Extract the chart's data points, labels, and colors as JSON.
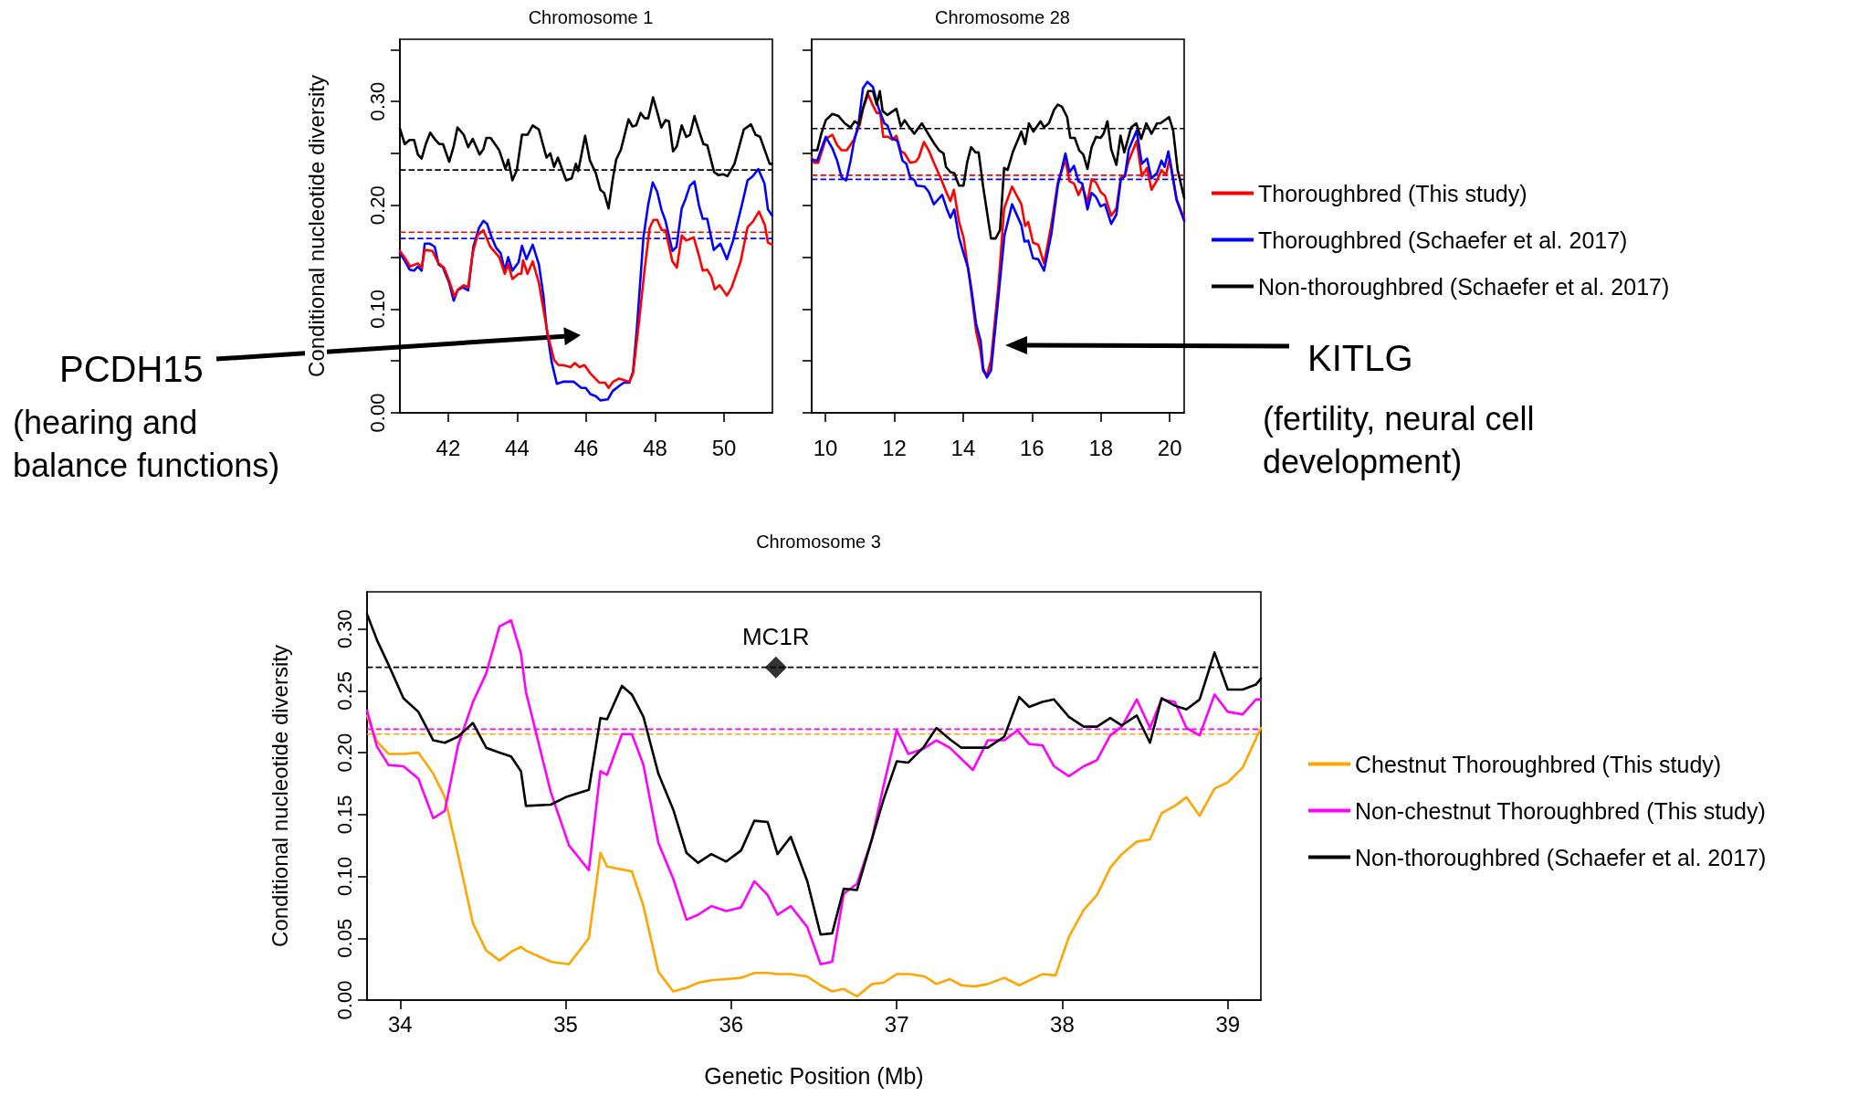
{
  "chart_data": [
    {
      "type": "line",
      "title": "Chromosome 1",
      "ylabel": "Conditional nucleotide diversity",
      "annotations": [
        "PCDH15",
        "(hearing and balance functions)"
      ],
      "xlim": [
        40.6,
        51.4
      ],
      "ylim": [
        0,
        0.36
      ],
      "xticks": [
        42,
        44,
        46,
        48,
        50
      ],
      "yticks": [
        {
          "value": 0,
          "label": "0.00"
        },
        {
          "value": 0.05,
          "label": null
        },
        {
          "value": 0.1,
          "label": "0.10"
        },
        {
          "value": 0.15,
          "label": null
        },
        {
          "value": 0.2,
          "label": "0.20"
        },
        {
          "value": 0.25,
          "label": null
        },
        {
          "value": 0.3,
          "label": "0.30"
        },
        {
          "value": 0.35,
          "label": null
        }
      ],
      "grid": false,
      "line_style": "solid",
      "ref_lines": [
        {
          "axis": "y",
          "value": 0.234,
          "color": "#000000",
          "line_style": "dashed"
        },
        {
          "axis": "y",
          "value": 0.174,
          "color": "#ff0000",
          "line_style": "dashed"
        },
        {
          "axis": "y",
          "value": 0.168,
          "color": "#0000ff",
          "line_style": "dashed"
        }
      ],
      "series": [
        {
          "color": "#000000",
          "x": [
            40.6,
            40.74,
            40.88,
            41.01,
            41.12,
            41.23,
            41.35,
            41.48,
            41.63,
            41.74,
            41.85,
            42.03,
            42.16,
            42.27,
            42.45,
            42.58,
            42.71,
            42.91,
            43.02,
            43.11,
            43.23,
            43.48,
            43.66,
            43.74,
            43.86,
            43.99,
            44.14,
            44.3,
            44.45,
            44.63,
            44.85,
            44.96,
            45.07,
            45.18,
            45.42,
            45.58,
            45.7,
            45.77,
            45.97,
            46.11,
            46.28,
            46.41,
            46.52,
            46.65,
            46.77,
            46.87,
            47.01,
            47.23,
            47.34,
            47.45,
            47.58,
            47.69,
            47.8,
            47.94,
            48.06,
            48.18,
            48.3,
            48.4,
            48.52,
            48.63,
            48.77,
            48.9,
            49.01,
            49.14,
            49.27,
            49.4,
            49.51,
            49.71,
            49.84,
            49.97,
            50.1,
            50.3,
            50.57,
            50.78,
            50.91,
            51.04,
            51.32,
            51.39
          ],
          "values": [
            0.274,
            0.259,
            0.263,
            0.263,
            0.249,
            0.245,
            0.259,
            0.27,
            0.263,
            0.259,
            0.259,
            0.242,
            0.257,
            0.275,
            0.268,
            0.256,
            0.264,
            0.249,
            0.254,
            0.265,
            0.265,
            0.253,
            0.235,
            0.244,
            0.224,
            0.234,
            0.268,
            0.268,
            0.277,
            0.273,
            0.246,
            0.25,
            0.237,
            0.246,
            0.224,
            0.226,
            0.24,
            0.233,
            0.267,
            0.243,
            0.231,
            0.215,
            0.212,
            0.197,
            0.225,
            0.244,
            0.254,
            0.283,
            0.276,
            0.277,
            0.289,
            0.284,
            0.284,
            0.304,
            0.29,
            0.275,
            0.282,
            0.281,
            0.252,
            0.257,
            0.277,
            0.266,
            0.268,
            0.286,
            0.272,
            0.259,
            0.258,
            0.232,
            0.229,
            0.23,
            0.228,
            0.24,
            0.273,
            0.278,
            0.268,
            0.266,
            0.24,
            0.24
          ]
        },
        {
          "color": "#0000ff",
          "x": [
            40.6,
            40.75,
            40.88,
            41.01,
            41.12,
            41.23,
            41.32,
            41.47,
            41.61,
            41.72,
            41.85,
            42.03,
            42.16,
            42.27,
            42.42,
            42.58,
            42.73,
            42.89,
            43.02,
            43.13,
            43.26,
            43.39,
            43.52,
            43.64,
            43.74,
            43.86,
            44.04,
            44.14,
            44.27,
            44.45,
            44.63,
            44.76,
            44.85,
            45.0,
            45.15,
            45.33,
            45.64,
            45.86,
            45.99,
            46.12,
            46.28,
            46.41,
            46.63,
            46.77,
            46.96,
            47.09,
            47.25,
            47.36,
            47.47,
            47.66,
            47.8,
            47.93,
            48.06,
            48.18,
            48.3,
            48.5,
            48.62,
            48.77,
            48.88,
            49.01,
            49.14,
            49.27,
            49.38,
            49.51,
            49.7,
            49.89,
            50.08,
            50.26,
            50.52,
            50.68,
            50.83,
            50.99,
            51.17,
            51.27,
            51.39
          ],
          "values": [
            0.154,
            0.146,
            0.138,
            0.137,
            0.141,
            0.137,
            0.163,
            0.163,
            0.16,
            0.143,
            0.14,
            0.125,
            0.108,
            0.118,
            0.121,
            0.118,
            0.16,
            0.178,
            0.185,
            0.182,
            0.169,
            0.159,
            0.154,
            0.137,
            0.15,
            0.137,
            0.145,
            0.161,
            0.148,
            0.162,
            0.143,
            0.113,
            0.082,
            0.049,
            0.028,
            0.03,
            0.03,
            0.024,
            0.024,
            0.018,
            0.016,
            0.012,
            0.013,
            0.021,
            0.026,
            0.029,
            0.029,
            0.04,
            0.081,
            0.169,
            0.201,
            0.222,
            0.213,
            0.196,
            0.185,
            0.156,
            0.16,
            0.197,
            0.206,
            0.219,
            0.223,
            0.2,
            0.187,
            0.187,
            0.157,
            0.163,
            0.148,
            0.166,
            0.201,
            0.224,
            0.228,
            0.235,
            0.221,
            0.196,
            0.19
          ]
        },
        {
          "color": "#ff0000",
          "x": [
            40.6,
            40.75,
            40.9,
            41.12,
            41.23,
            41.32,
            41.54,
            41.72,
            41.88,
            42.03,
            42.18,
            42.29,
            42.45,
            42.58,
            42.71,
            42.85,
            43.02,
            43.22,
            43.48,
            43.64,
            43.74,
            43.86,
            44.04,
            44.12,
            44.17,
            44.3,
            44.45,
            44.63,
            44.89,
            45.07,
            45.2,
            45.33,
            45.55,
            45.67,
            45.81,
            45.95,
            46.12,
            46.39,
            46.55,
            46.65,
            46.78,
            46.96,
            47.14,
            47.25,
            47.36,
            47.53,
            47.69,
            47.84,
            47.95,
            48.06,
            48.19,
            48.3,
            48.5,
            48.63,
            48.77,
            48.9,
            49.12,
            49.29,
            49.38,
            49.51,
            49.63,
            49.73,
            49.87,
            50.08,
            50.22,
            50.48,
            50.68,
            50.83,
            51.01,
            51.18,
            51.27,
            51.39
          ],
          "values": [
            0.156,
            0.149,
            0.141,
            0.144,
            0.14,
            0.157,
            0.156,
            0.144,
            0.14,
            0.127,
            0.112,
            0.119,
            0.123,
            0.121,
            0.154,
            0.171,
            0.176,
            0.16,
            0.15,
            0.134,
            0.143,
            0.129,
            0.134,
            0.134,
            0.147,
            0.134,
            0.146,
            0.125,
            0.075,
            0.051,
            0.046,
            0.046,
            0.044,
            0.048,
            0.044,
            0.046,
            0.038,
            0.029,
            0.029,
            0.024,
            0.03,
            0.033,
            0.031,
            0.03,
            0.038,
            0.087,
            0.137,
            0.178,
            0.186,
            0.186,
            0.176,
            0.176,
            0.146,
            0.14,
            0.171,
            0.166,
            0.169,
            0.149,
            0.137,
            0.138,
            0.131,
            0.119,
            0.123,
            0.113,
            0.121,
            0.146,
            0.179,
            0.184,
            0.194,
            0.181,
            0.164,
            0.162
          ]
        }
      ]
    },
    {
      "type": "line",
      "title": "Chromosome 28",
      "annotations": [
        "KITLG",
        "(fertility, neural cell development)"
      ],
      "xlim": [
        9.6,
        20.42
      ],
      "ylim": [
        0,
        0.36
      ],
      "xticks": [
        10,
        12,
        14,
        16,
        18,
        20
      ],
      "yticks": [
        0,
        0.05,
        0.1,
        0.15,
        0.2,
        0.25,
        0.3,
        0.35
      ],
      "tick_labels": "x",
      "grid": false,
      "legend": "right",
      "line_style": "solid",
      "ref_lines": [
        {
          "axis": "y",
          "value": 0.274,
          "color": "#000000",
          "line_style": "dashed"
        },
        {
          "axis": "y",
          "value": 0.229,
          "color": "#ff0000",
          "line_style": "dashed"
        },
        {
          "axis": "y",
          "value": 0.225,
          "color": "#0000ff",
          "line_style": "dashed"
        }
      ],
      "series": [
        {
          "name": "Thoroughbred (This study)",
          "color": "#ff0000",
          "x": [
            9.6,
            9.67,
            9.79,
            10.01,
            10.2,
            10.34,
            10.47,
            10.62,
            10.82,
            11.0,
            11.09,
            11.24,
            11.38,
            11.49,
            11.59,
            11.68,
            11.82,
            11.95,
            12.06,
            12.19,
            12.3,
            12.46,
            12.62,
            12.71,
            12.86,
            13.0,
            13.15,
            13.35,
            13.52,
            13.63,
            13.73,
            13.88,
            14.01,
            14.19,
            14.38,
            14.5,
            14.58,
            14.69,
            14.81,
            15.03,
            15.19,
            15.42,
            15.69,
            15.8,
            15.89,
            16.03,
            16.18,
            16.35,
            16.56,
            16.75,
            16.97,
            17.09,
            17.22,
            17.35,
            17.46,
            17.61,
            17.73,
            17.86,
            17.99,
            18.12,
            18.3,
            18.45,
            18.58,
            18.7,
            18.81,
            19.04,
            19.19,
            19.34,
            19.47,
            19.63,
            19.76,
            19.89,
            20.0,
            20.2,
            20.42
          ],
          "values": [
            0.246,
            0.241,
            0.241,
            0.264,
            0.268,
            0.258,
            0.253,
            0.253,
            0.263,
            0.278,
            0.293,
            0.307,
            0.296,
            0.289,
            0.289,
            0.266,
            0.266,
            0.263,
            0.267,
            0.252,
            0.25,
            0.241,
            0.242,
            0.246,
            0.261,
            0.253,
            0.241,
            0.226,
            0.212,
            0.204,
            0.215,
            0.184,
            0.169,
            0.128,
            0.078,
            0.06,
            0.04,
            0.036,
            0.051,
            0.125,
            0.197,
            0.218,
            0.201,
            0.18,
            0.184,
            0.164,
            0.162,
            0.144,
            0.181,
            0.222,
            0.244,
            0.223,
            0.221,
            0.21,
            0.218,
            0.203,
            0.225,
            0.222,
            0.213,
            0.209,
            0.19,
            0.197,
            0.227,
            0.229,
            0.243,
            0.262,
            0.228,
            0.236,
            0.215,
            0.224,
            0.234,
            0.229,
            0.245,
            0.206,
            0.187
          ]
        },
        {
          "name": "Thoroughbred (Schaefer et al. 2017)",
          "color": "#0000ff",
          "x": [
            9.6,
            9.76,
            10.01,
            10.2,
            10.34,
            10.47,
            10.6,
            10.73,
            10.82,
            10.96,
            11.09,
            11.22,
            11.38,
            11.53,
            11.71,
            11.8,
            11.93,
            12.09,
            12.24,
            12.35,
            12.46,
            12.59,
            12.65,
            12.88,
            13.0,
            13.15,
            13.39,
            13.52,
            13.63,
            13.74,
            13.88,
            14.01,
            14.14,
            14.25,
            14.38,
            14.51,
            14.58,
            14.69,
            14.81,
            15.01,
            15.2,
            15.42,
            15.69,
            15.78,
            15.89,
            16.03,
            16.18,
            16.35,
            16.56,
            16.75,
            16.97,
            17.09,
            17.22,
            17.35,
            17.46,
            17.61,
            17.73,
            17.86,
            17.99,
            18.12,
            18.3,
            18.45,
            18.58,
            18.7,
            18.81,
            19.04,
            19.19,
            19.34,
            19.47,
            19.63,
            19.76,
            19.85,
            19.96,
            20.2,
            20.42
          ],
          "values": [
            0.244,
            0.243,
            0.266,
            0.255,
            0.243,
            0.227,
            0.224,
            0.243,
            0.26,
            0.278,
            0.313,
            0.319,
            0.314,
            0.295,
            0.279,
            0.277,
            0.265,
            0.262,
            0.243,
            0.24,
            0.227,
            0.224,
            0.219,
            0.218,
            0.213,
            0.201,
            0.21,
            0.197,
            0.188,
            0.196,
            0.169,
            0.154,
            0.14,
            0.117,
            0.085,
            0.069,
            0.043,
            0.034,
            0.041,
            0.107,
            0.171,
            0.201,
            0.181,
            0.165,
            0.166,
            0.149,
            0.148,
            0.137,
            0.172,
            0.219,
            0.25,
            0.232,
            0.238,
            0.223,
            0.221,
            0.196,
            0.212,
            0.208,
            0.199,
            0.201,
            0.182,
            0.191,
            0.225,
            0.228,
            0.254,
            0.272,
            0.24,
            0.245,
            0.226,
            0.231,
            0.243,
            0.237,
            0.252,
            0.205,
            0.185
          ]
        },
        {
          "name": "Non-thoroughbred (Schaefer et al. 2017)",
          "color": "#000000",
          "x": [
            9.6,
            9.76,
            9.88,
            10.01,
            10.2,
            10.38,
            10.56,
            10.73,
            10.85,
            10.97,
            11.12,
            11.24,
            11.38,
            11.49,
            11.58,
            11.66,
            11.8,
            12.06,
            12.19,
            12.3,
            12.42,
            12.58,
            12.8,
            13.0,
            13.17,
            13.3,
            13.43,
            13.5,
            13.63,
            13.74,
            13.88,
            14.01,
            14.12,
            14.23,
            14.36,
            14.45,
            14.58,
            14.81,
            14.94,
            15.07,
            15.19,
            15.29,
            15.45,
            15.69,
            15.8,
            15.91,
            16.04,
            16.25,
            16.35,
            16.49,
            16.64,
            16.75,
            16.87,
            17.02,
            17.11,
            17.24,
            17.37,
            17.49,
            17.61,
            17.73,
            17.86,
            17.99,
            18.08,
            18.19,
            18.3,
            18.45,
            18.57,
            18.68,
            18.88,
            19.03,
            19.17,
            19.32,
            19.47,
            19.63,
            19.73,
            19.98,
            20.1,
            20.23,
            20.42
          ],
          "values": [
            0.253,
            0.253,
            0.269,
            0.282,
            0.288,
            0.286,
            0.279,
            0.275,
            0.281,
            0.278,
            0.297,
            0.31,
            0.31,
            0.297,
            0.31,
            0.291,
            0.287,
            0.293,
            0.276,
            0.282,
            0.276,
            0.269,
            0.279,
            0.268,
            0.259,
            0.253,
            0.25,
            0.237,
            0.232,
            0.231,
            0.219,
            0.219,
            0.242,
            0.256,
            0.251,
            0.251,
            0.218,
            0.168,
            0.168,
            0.176,
            0.236,
            0.234,
            0.252,
            0.271,
            0.259,
            0.279,
            0.271,
            0.281,
            0.275,
            0.279,
            0.292,
            0.297,
            0.295,
            0.285,
            0.265,
            0.265,
            0.253,
            0.249,
            0.235,
            0.256,
            0.266,
            0.265,
            0.269,
            0.281,
            0.254,
            0.239,
            0.267,
            0.251,
            0.275,
            0.279,
            0.264,
            0.279,
            0.269,
            0.279,
            0.279,
            0.285,
            0.272,
            0.234,
            0.207
          ]
        }
      ]
    },
    {
      "type": "line",
      "title": "Chromosome 3",
      "xlabel": "Genetic Position (Mb)",
      "ylabel": "Conditional nucleotide diversity",
      "annotations": [
        {
          "text": "MC1R",
          "x": 36.27,
          "y": 0.269
        }
      ],
      "xlim": [
        33.8,
        39.2
      ],
      "ylim": [
        0,
        0.33
      ],
      "xticks": [
        34,
        35,
        36,
        37,
        38,
        39
      ],
      "yticks": [
        {
          "value": 0,
          "label": "0.00"
        },
        {
          "value": 0.05,
          "label": "0.05"
        },
        {
          "value": 0.1,
          "label": "0.10"
        },
        {
          "value": 0.15,
          "label": "0.15"
        },
        {
          "value": 0.2,
          "label": "0.20"
        },
        {
          "value": 0.25,
          "label": "0.25"
        },
        {
          "value": 0.3,
          "label": "0.30"
        }
      ],
      "grid": false,
      "legend": "right",
      "line_style": "solid",
      "ref_lines": [
        {
          "axis": "y",
          "value": 0.269,
          "color": "#000000",
          "line_style": "dashed"
        },
        {
          "axis": "y",
          "value": 0.219,
          "color": "#ff00ff",
          "line_style": "dashed"
        },
        {
          "axis": "y",
          "value": 0.215,
          "color": "#ffa500",
          "line_style": "dashed"
        }
      ],
      "series": [
        {
          "name": "Chestnut Thoroughbred (This study)",
          "color": "#ffa500",
          "x": [
            33.8,
            33.86,
            33.93,
            34.02,
            34.11,
            34.2,
            34.27,
            34.35,
            34.44,
            34.52,
            34.6,
            34.67,
            34.73,
            34.76,
            34.91,
            35.02,
            35.14,
            35.21,
            35.25,
            35.4,
            35.47,
            35.56,
            35.65,
            35.73,
            35.8,
            35.88,
            35.97,
            36.06,
            36.14,
            36.22,
            36.28,
            36.36,
            36.46,
            36.54,
            36.61,
            36.68,
            36.76,
            36.85,
            36.92,
            37.0,
            37.08,
            37.17,
            37.24,
            37.32,
            37.39,
            37.47,
            37.55,
            37.65,
            37.74,
            37.88,
            37.96,
            38.04,
            38.13,
            38.21,
            38.29,
            38.36,
            38.45,
            38.53,
            38.6,
            38.68,
            38.75,
            38.83,
            38.92,
            39.0,
            39.09,
            39.2
          ],
          "values": [
            0.23,
            0.209,
            0.199,
            0.199,
            0.2,
            0.183,
            0.164,
            0.117,
            0.062,
            0.04,
            0.032,
            0.039,
            0.043,
            0.04,
            0.031,
            0.029,
            0.05,
            0.119,
            0.108,
            0.104,
            0.076,
            0.023,
            0.007,
            0.01,
            0.014,
            0.016,
            0.017,
            0.018,
            0.022,
            0.022,
            0.021,
            0.021,
            0.019,
            0.012,
            0.007,
            0.009,
            0.003,
            0.013,
            0.014,
            0.021,
            0.021,
            0.019,
            0.013,
            0.017,
            0.012,
            0.011,
            0.013,
            0.018,
            0.012,
            0.021,
            0.02,
            0.051,
            0.073,
            0.085,
            0.107,
            0.118,
            0.128,
            0.13,
            0.151,
            0.157,
            0.164,
            0.149,
            0.171,
            0.176,
            0.188,
            0.22
          ]
        },
        {
          "name": "Non-chestnut Thoroughbred (This study)",
          "color": "#ff00ff",
          "x": [
            33.8,
            33.86,
            33.93,
            34.02,
            34.11,
            34.2,
            34.27,
            34.35,
            34.44,
            34.52,
            34.6,
            34.67,
            34.73,
            34.76,
            34.91,
            35.02,
            35.14,
            35.21,
            35.25,
            35.34,
            35.4,
            35.47,
            35.56,
            35.65,
            35.73,
            35.8,
            35.88,
            35.97,
            36.06,
            36.14,
            36.22,
            36.28,
            36.36,
            36.46,
            36.54,
            36.61,
            36.68,
            36.76,
            36.85,
            36.92,
            37.0,
            37.07,
            37.16,
            37.24,
            37.32,
            37.46,
            37.55,
            37.65,
            37.73,
            37.8,
            37.88,
            37.95,
            38.04,
            38.13,
            38.21,
            38.29,
            38.36,
            38.45,
            38.53,
            38.6,
            38.68,
            38.75,
            38.83,
            38.92,
            39.0,
            39.09,
            39.17,
            39.2
          ],
          "values": [
            0.234,
            0.205,
            0.19,
            0.189,
            0.179,
            0.147,
            0.153,
            0.206,
            0.241,
            0.264,
            0.302,
            0.307,
            0.28,
            0.249,
            0.168,
            0.125,
            0.105,
            0.185,
            0.182,
            0.215,
            0.215,
            0.19,
            0.127,
            0.098,
            0.065,
            0.069,
            0.076,
            0.072,
            0.075,
            0.096,
            0.085,
            0.069,
            0.076,
            0.059,
            0.029,
            0.031,
            0.086,
            0.094,
            0.13,
            0.173,
            0.218,
            0.199,
            0.203,
            0.21,
            0.204,
            0.186,
            0.21,
            0.21,
            0.218,
            0.207,
            0.206,
            0.189,
            0.181,
            0.189,
            0.194,
            0.214,
            0.221,
            0.243,
            0.22,
            0.243,
            0.241,
            0.22,
            0.214,
            0.247,
            0.233,
            0.231,
            0.243,
            0.243
          ]
        },
        {
          "name": "Non-thoroughbred (Schaefer et al. 2017)",
          "color": "#000000",
          "x": [
            33.8,
            33.86,
            33.93,
            34.02,
            34.11,
            34.2,
            34.27,
            34.35,
            34.44,
            34.52,
            34.6,
            34.67,
            34.73,
            34.76,
            34.91,
            35.0,
            35.14,
            35.21,
            35.25,
            35.34,
            35.4,
            35.47,
            35.56,
            35.65,
            35.73,
            35.8,
            35.88,
            35.97,
            36.06,
            36.14,
            36.22,
            36.28,
            36.36,
            36.46,
            36.54,
            36.61,
            36.68,
            36.76,
            36.85,
            36.92,
            37.0,
            37.07,
            37.16,
            37.24,
            37.32,
            37.39,
            37.47,
            37.55,
            37.65,
            37.74,
            37.8,
            37.88,
            37.95,
            38.04,
            38.13,
            38.21,
            38.29,
            38.36,
            38.45,
            38.53,
            38.6,
            38.68,
            38.75,
            38.83,
            38.92,
            39.0,
            39.09,
            39.17,
            39.2
          ],
          "values": [
            0.312,
            0.291,
            0.271,
            0.244,
            0.233,
            0.21,
            0.208,
            0.213,
            0.224,
            0.204,
            0.2,
            0.197,
            0.185,
            0.157,
            0.158,
            0.164,
            0.17,
            0.228,
            0.227,
            0.254,
            0.247,
            0.229,
            0.183,
            0.154,
            0.119,
            0.111,
            0.118,
            0.112,
            0.121,
            0.145,
            0.144,
            0.118,
            0.132,
            0.096,
            0.053,
            0.054,
            0.09,
            0.089,
            0.13,
            0.162,
            0.193,
            0.192,
            0.204,
            0.22,
            0.211,
            0.204,
            0.204,
            0.204,
            0.213,
            0.245,
            0.237,
            0.241,
            0.243,
            0.229,
            0.221,
            0.221,
            0.228,
            0.222,
            0.23,
            0.208,
            0.244,
            0.238,
            0.235,
            0.243,
            0.281,
            0.251,
            0.251,
            0.255,
            0.26
          ]
        },
        {
          "type": "scatter",
          "marker": "diamond",
          "color": "#000000",
          "x": [
            36.27
          ],
          "values": [
            0.269
          ]
        }
      ]
    }
  ]
}
